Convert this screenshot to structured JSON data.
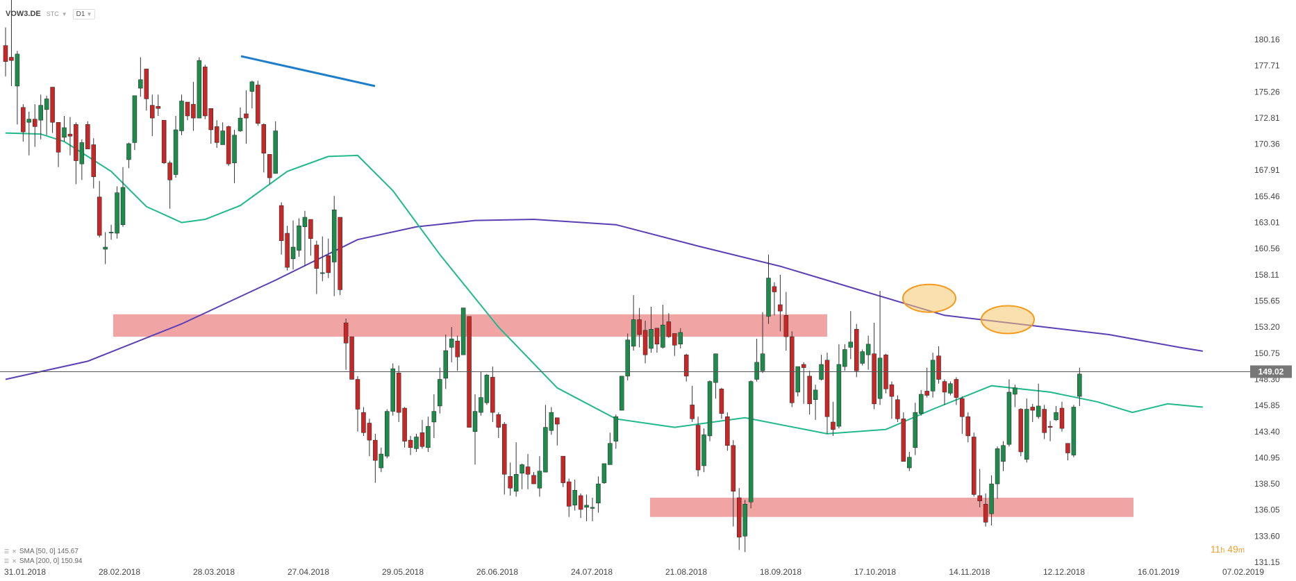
{
  "header": {
    "symbol": "VOW3.DE",
    "sub": "STC",
    "timeframe": "D1"
  },
  "legend": [
    {
      "label": "SMA [50, 0] 145.67"
    },
    {
      "label": "SMA [200, 0] 150.94"
    }
  ],
  "timer": {
    "hours": "11",
    "h_unit": "h",
    "minutes": "49",
    "m_unit": "m"
  },
  "chart_data": {
    "type": "candlestick",
    "instrument": "VOW3.DE",
    "timeframe": "D1",
    "x_tick_labels": [
      "31.01.2018",
      "28.02.2018",
      "28.03.2018",
      "27.04.2018",
      "29.05.2018",
      "26.06.2018",
      "24.07.2018",
      "21.08.2018",
      "18.09.2018",
      "17.10.2018",
      "14.11.2018",
      "12.12.2018",
      "16.01.2019",
      "07.02.2019"
    ],
    "y_tick_labels": [
      180.16,
      177.71,
      175.26,
      172.81,
      170.36,
      167.91,
      165.46,
      163.01,
      160.56,
      158.11,
      155.65,
      153.2,
      150.75,
      148.3,
      145.85,
      143.4,
      140.95,
      138.5,
      136.05,
      133.6,
      131.15
    ],
    "ylim": [
      131.15,
      182.3
    ],
    "current_price": 149.02,
    "indicators": [
      {
        "name": "SMA [50, 0]",
        "value": 145.67,
        "color": "#1fb98a"
      },
      {
        "name": "SMA [200, 0]",
        "value": 150.94,
        "color": "#5a3fb5"
      }
    ],
    "sma50_path": [
      [
        0,
        171.4
      ],
      [
        6,
        171.3
      ],
      [
        10,
        170.6
      ],
      [
        18,
        167.8
      ],
      [
        24,
        164.5
      ],
      [
        30,
        163.0
      ],
      [
        34,
        163.3
      ],
      [
        40,
        164.6
      ],
      [
        48,
        167.8
      ],
      [
        55,
        169.2
      ],
      [
        60,
        169.3
      ],
      [
        66,
        166.0
      ],
      [
        74,
        160.0
      ],
      [
        84,
        153.2
      ],
      [
        94,
        147.5
      ],
      [
        104,
        144.6
      ],
      [
        114,
        143.8
      ],
      [
        126,
        144.7
      ],
      [
        140,
        143.2
      ],
      [
        150,
        143.6
      ],
      [
        158,
        145.5
      ],
      [
        168,
        147.7
      ],
      [
        178,
        147.1
      ],
      [
        186,
        146.2
      ],
      [
        192,
        145.2
      ],
      [
        198,
        146.0
      ],
      [
        204,
        145.7
      ]
    ],
    "sma200_path": [
      [
        0,
        148.3
      ],
      [
        14,
        150.0
      ],
      [
        30,
        153.5
      ],
      [
        46,
        157.6
      ],
      [
        60,
        161.4
      ],
      [
        70,
        162.6
      ],
      [
        80,
        163.2
      ],
      [
        90,
        163.3
      ],
      [
        104,
        162.8
      ],
      [
        118,
        160.8
      ],
      [
        132,
        158.9
      ],
      [
        146,
        156.6
      ],
      [
        160,
        154.3
      ],
      [
        174,
        153.4
      ],
      [
        188,
        152.5
      ],
      [
        200,
        151.3
      ],
      [
        204,
        150.94
      ]
    ],
    "candles": [
      [
        179.6,
        178.1,
        181.3,
        176.7
      ],
      [
        178.5,
        178.2,
        184.1,
        175.8
      ],
      [
        175.8,
        178.8,
        179.1,
        172.2
      ],
      [
        173.8,
        171.5,
        174.1,
        170.6
      ],
      [
        172.4,
        172.7,
        173.4,
        169.3
      ],
      [
        172.7,
        172.0,
        174.1,
        170.1
      ],
      [
        172.6,
        174.0,
        175.0,
        170.8
      ],
      [
        173.6,
        174.6,
        174.9,
        171.2
      ],
      [
        175.7,
        172.4,
        175.5,
        171.4
      ],
      [
        172.4,
        169.6,
        172.4,
        168.2
      ],
      [
        171.0,
        171.9,
        173.0,
        170.6
      ],
      [
        171.3,
        171.1,
        172.9,
        169.3
      ],
      [
        172.2,
        168.8,
        172.4,
        166.6
      ],
      [
        168.5,
        170.5,
        170.8,
        167.0
      ],
      [
        172.2,
        169.9,
        172.5,
        169.9
      ],
      [
        170.3,
        167.3,
        170.9,
        166.2
      ],
      [
        165.4,
        161.8,
        166.9,
        161.6
      ],
      [
        160.5,
        160.7,
        162.1,
        159.1
      ],
      [
        162.1,
        162.1,
        162.8,
        161.4
      ],
      [
        162.0,
        165.8,
        166.4,
        161.5
      ],
      [
        162.8,
        166.3,
        168.2,
        162.6
      ],
      [
        168.9,
        170.4,
        170.5,
        168.1
      ],
      [
        170.5,
        174.9,
        174.8,
        169.8
      ],
      [
        175.6,
        176.4,
        178.5,
        174.8
      ],
      [
        177.4,
        174.6,
        177.2,
        173.5
      ],
      [
        174.0,
        172.8,
        175.0,
        171.1
      ],
      [
        173.9,
        173.7,
        175.0,
        173.0
      ],
      [
        172.6,
        168.6,
        172.5,
        168.5
      ],
      [
        168.6,
        167.0,
        168.8,
        164.3
      ],
      [
        167.5,
        171.7,
        173.0,
        167.2
      ],
      [
        171.6,
        174.4,
        175.0,
        171.2
      ],
      [
        174.3,
        173.0,
        174.2,
        172.6
      ],
      [
        174.1,
        172.8,
        176.2,
        171.6
      ],
      [
        172.8,
        178.2,
        178.5,
        172.8
      ],
      [
        177.6,
        173.0,
        177.8,
        172.7
      ],
      [
        173.7,
        171.7,
        173.6,
        170.4
      ],
      [
        172.0,
        170.5,
        172.6,
        170.0
      ],
      [
        170.3,
        171.6,
        172.4,
        170.3
      ],
      [
        172.0,
        168.5,
        172.1,
        168.3
      ],
      [
        168.6,
        171.2,
        171.7,
        166.7
      ],
      [
        171.6,
        172.8,
        173.8,
        171.5
      ],
      [
        173.2,
        172.8,
        175.4,
        170.4
      ],
      [
        175.3,
        176.2,
        176.3,
        173.7
      ],
      [
        175.9,
        172.3,
        176.3,
        172.1
      ],
      [
        172.2,
        169.5,
        172.3,
        167.7
      ],
      [
        169.4,
        167.2,
        169.3,
        166.6
      ],
      [
        167.6,
        171.6,
        172.5,
        167.6
      ],
      [
        164.6,
        161.3,
        164.9,
        160.0
      ],
      [
        162.0,
        158.8,
        162.7,
        158.5
      ],
      [
        159.6,
        160.7,
        163.2,
        158.6
      ],
      [
        160.4,
        162.7,
        163.4,
        159.8
      ],
      [
        162.6,
        163.5,
        164.1,
        158.9
      ],
      [
        163.3,
        161.5,
        163.3,
        159.9
      ],
      [
        160.9,
        158.7,
        161.3,
        156.3
      ],
      [
        158.3,
        158.3,
        161.7,
        157.5
      ],
      [
        159.9,
        158.3,
        161.5,
        157.8
      ],
      [
        159.3,
        164.2,
        165.5,
        156.1
      ],
      [
        163.5,
        156.7,
        163.5,
        156.2
      ],
      [
        153.6,
        151.7,
        154.0,
        149.2
      ],
      [
        152.3,
        148.3,
        152.0,
        148.3
      ],
      [
        148.3,
        145.5,
        148.6,
        143.4
      ],
      [
        145.2,
        143.3,
        145.7,
        143.0
      ],
      [
        144.2,
        142.6,
        144.6,
        141.1
      ],
      [
        142.6,
        140.7,
        143.2,
        138.6
      ],
      [
        140.0,
        141.3,
        141.9,
        139.6
      ],
      [
        141.1,
        145.3,
        145.5,
        140.9
      ],
      [
        145.3,
        149.3,
        149.8,
        144.9
      ],
      [
        148.9,
        145.2,
        149.6,
        144.3
      ],
      [
        145.6,
        142.5,
        145.7,
        141.9
      ],
      [
        142.6,
        141.9,
        143.0,
        141.2
      ],
      [
        141.8,
        142.9,
        143.2,
        141.5
      ],
      [
        143.3,
        142.0,
        144.5,
        141.8
      ],
      [
        141.9,
        143.9,
        144.8,
        141.5
      ],
      [
        144.3,
        145.3,
        146.9,
        142.8
      ],
      [
        145.8,
        148.3,
        149.4,
        145.1
      ],
      [
        148.4,
        151.0,
        152.5,
        147.4
      ],
      [
        151.3,
        152.1,
        153.2,
        149.9
      ],
      [
        151.9,
        150.4,
        152.4,
        149.1
      ],
      [
        150.6,
        155.0,
        155.0,
        150.6
      ],
      [
        154.2,
        143.8,
        154.0,
        143.8
      ],
      [
        143.4,
        145.3,
        146.9,
        140.3
      ],
      [
        145.2,
        146.6,
        149.0,
        144.9
      ],
      [
        146.1,
        148.7,
        148.8,
        145.9
      ],
      [
        148.5,
        145.2,
        149.5,
        144.3
      ],
      [
        145.0,
        143.8,
        145.2,
        142.8
      ],
      [
        144.1,
        139.4,
        144.3,
        137.5
      ],
      [
        139.2,
        138.1,
        140.5,
        137.4
      ],
      [
        137.8,
        139.4,
        142.4,
        137.3
      ],
      [
        139.5,
        140.3,
        140.4,
        138.0
      ],
      [
        140.1,
        139.4,
        141.3,
        138.0
      ],
      [
        139.3,
        138.5,
        139.6,
        138.5
      ],
      [
        138.1,
        139.7,
        141.1,
        137.3
      ],
      [
        139.6,
        143.8,
        145.9,
        139.7
      ],
      [
        143.5,
        145.2,
        145.7,
        143.1
      ],
      [
        144.7,
        144.1,
        144.6,
        142.1
      ],
      [
        141.1,
        138.6,
        141.1,
        138.2
      ],
      [
        138.7,
        136.4,
        139.0,
        135.4
      ],
      [
        136.5,
        137.9,
        138.9,
        136.0
      ],
      [
        137.4,
        136.1,
        137.6,
        135.3
      ],
      [
        136.3,
        136.5,
        137.5,
        135.0
      ],
      [
        136.2,
        136.3,
        137.2,
        135.0
      ],
      [
        136.7,
        138.5,
        139.2,
        135.8
      ],
      [
        138.6,
        140.4,
        140.3,
        138.5
      ],
      [
        140.3,
        142.3,
        143.3,
        140.3
      ],
      [
        142.5,
        144.8,
        145.0,
        141.8
      ],
      [
        145.4,
        148.6,
        148.6,
        145.5
      ],
      [
        148.6,
        152.0,
        152.6,
        148.2
      ],
      [
        151.4,
        153.9,
        156.2,
        151.0
      ],
      [
        153.9,
        152.5,
        155.0,
        151.3
      ],
      [
        152.9,
        150.6,
        153.8,
        149.8
      ],
      [
        151.2,
        153.0,
        155.1,
        150.8
      ],
      [
        153.1,
        151.6,
        153.1,
        150.8
      ],
      [
        151.3,
        153.4,
        155.3,
        151.2
      ],
      [
        153.7,
        152.3,
        154.5,
        152.2
      ],
      [
        152.6,
        151.5,
        152.6,
        150.5
      ],
      [
        151.6,
        152.7,
        153.1,
        151.2
      ],
      [
        150.6,
        148.6,
        150.7,
        148.1
      ],
      [
        145.9,
        144.6,
        147.7,
        144.3
      ],
      [
        144.0,
        139.8,
        144.8,
        139.2
      ],
      [
        140.2,
        143.1,
        143.7,
        139.6
      ],
      [
        143.0,
        148.1,
        148.2,
        142.5
      ],
      [
        148.0,
        150.7,
        150.7,
        146.5
      ],
      [
        147.4,
        145.1,
        147.5,
        144.6
      ],
      [
        144.8,
        142.1,
        145.2,
        141.6
      ],
      [
        142.1,
        137.8,
        142.6,
        134.5
      ],
      [
        137.2,
        133.5,
        138.1,
        132.3
      ],
      [
        133.6,
        136.6,
        137.0,
        132.1
      ],
      [
        136.8,
        148.1,
        148.2,
        136.2
      ],
      [
        148.3,
        149.9,
        152.1,
        148.1
      ],
      [
        149.1,
        150.7,
        154.6,
        148.9
      ],
      [
        154.2,
        157.8,
        160.0,
        153.5
      ],
      [
        157.0,
        156.5,
        157.4,
        154.3
      ],
      [
        155.3,
        154.7,
        158.1,
        152.8
      ],
      [
        154.3,
        152.3,
        156.5,
        151.0
      ],
      [
        152.3,
        146.1,
        152.8,
        145.7
      ],
      [
        147.1,
        149.5,
        149.2,
        146.7
      ],
      [
        149.7,
        149.4,
        149.9,
        146.0
      ],
      [
        148.6,
        146.0,
        149.1,
        145.0
      ],
      [
        146.4,
        147.3,
        147.8,
        144.5
      ],
      [
        148.3,
        149.7,
        150.6,
        148.2
      ],
      [
        150.1,
        144.8,
        150.8,
        143.2
      ],
      [
        144.3,
        143.6,
        146.2,
        143.0
      ],
      [
        143.9,
        149.7,
        151.6,
        143.7
      ],
      [
        149.5,
        151.1,
        151.6,
        149.1
      ],
      [
        151.3,
        151.8,
        154.7,
        150.2
      ],
      [
        153.0,
        149.1,
        153.5,
        148.5
      ],
      [
        149.8,
        150.9,
        151.1,
        149.6
      ],
      [
        150.6,
        151.6,
        152.4,
        149.2
      ],
      [
        150.7,
        146.0,
        153.6,
        145.5
      ],
      [
        146.5,
        150.3,
        156.6,
        145.9
      ],
      [
        150.6,
        147.4,
        150.7,
        147.0
      ],
      [
        147.8,
        146.7,
        148.1,
        144.6
      ],
      [
        146.4,
        144.6,
        146.8,
        144.3
      ],
      [
        144.6,
        140.6,
        145.2,
        140.6
      ],
      [
        140.0,
        141.0,
        141.5,
        139.7
      ],
      [
        141.9,
        145.2,
        146.1,
        141.2
      ],
      [
        145.1,
        146.9,
        147.3,
        144.9
      ],
      [
        147.2,
        146.8,
        149.4,
        146.6
      ],
      [
        147.2,
        150.1,
        150.8,
        146.6
      ],
      [
        150.5,
        148.3,
        151.4,
        147.9
      ],
      [
        148.1,
        147.1,
        148.3,
        145.9
      ],
      [
        147.0,
        147.9,
        148.1,
        146.8
      ],
      [
        148.3,
        146.6,
        148.5,
        145.9
      ],
      [
        146.5,
        144.8,
        146.7,
        143.2
      ],
      [
        144.8,
        143.0,
        145.2,
        142.4
      ],
      [
        142.9,
        137.5,
        143.3,
        137.3
      ],
      [
        137.4,
        136.9,
        139.9,
        136.3
      ],
      [
        136.6,
        134.9,
        137.6,
        134.5
      ],
      [
        135.7,
        138.5,
        139.3,
        134.6
      ],
      [
        138.5,
        141.8,
        142.0,
        137.1
      ],
      [
        140.6,
        142.1,
        142.5,
        139.7
      ],
      [
        142.2,
        147.1,
        148.3,
        142.0
      ],
      [
        146.9,
        147.5,
        147.8,
        145.7
      ],
      [
        145.5,
        141.5,
        145.6,
        141.1
      ],
      [
        140.8,
        145.5,
        146.5,
        140.5
      ],
      [
        145.7,
        145.4,
        146.0,
        144.3
      ],
      [
        144.8,
        145.8,
        147.9,
        144.6
      ],
      [
        145.5,
        143.3,
        145.9,
        142.7
      ],
      [
        143.9,
        143.8,
        144.4,
        142.5
      ],
      [
        144.5,
        145.2,
        145.8,
        144.4
      ],
      [
        145.6,
        143.7,
        146.2,
        143.4
      ],
      [
        142.3,
        141.4,
        142.2,
        140.7
      ],
      [
        141.2,
        145.7,
        145.9,
        141.0
      ],
      [
        146.7,
        148.8,
        149.4,
        145.8
      ]
    ]
  }
}
